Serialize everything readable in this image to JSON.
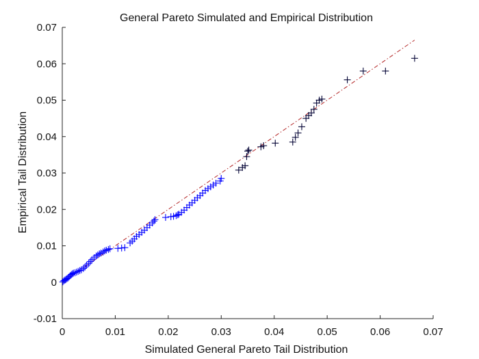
{
  "chart_data": {
    "type": "scatter",
    "title": "General Pareto Simulated and Empirical Distribution",
    "xlabel": "Simulated General Pareto Tail Distribution",
    "ylabel": "Empirical Tail Distribution",
    "xlim": [
      0,
      0.07
    ],
    "ylim": [
      -0.01,
      0.07
    ],
    "xticks": [
      "0",
      "0.01",
      "0.02",
      "0.03",
      "0.04",
      "0.05",
      "0.06",
      "0.07"
    ],
    "yticks": [
      "-0.01",
      "0",
      "0.01",
      "0.02",
      "0.03",
      "0.04",
      "0.05",
      "0.06",
      "0.07"
    ],
    "grid": false,
    "marker_color": "#0000ff",
    "highlight_marker_color": "#000033",
    "reference_line_color": "#b22222",
    "reference_line": {
      "x": [
        0,
        0.0665
      ],
      "y": [
        0,
        0.0665
      ]
    },
    "series": [
      {
        "marker": "plus",
        "x": [
          0.0001,
          0.0003,
          0.0005,
          0.0007,
          0.0009,
          0.0011,
          0.0013,
          0.0015,
          0.0017,
          0.0019,
          0.0021,
          0.0024,
          0.0027,
          0.003,
          0.0033,
          0.0036,
          0.004,
          0.0043,
          0.0046,
          0.005,
          0.0053,
          0.0056,
          0.006,
          0.0064,
          0.0067,
          0.007,
          0.0073,
          0.0077,
          0.008,
          0.0083,
          0.0087,
          0.009,
          0.0105,
          0.0112,
          0.0118,
          0.0128,
          0.0132,
          0.0136,
          0.014,
          0.0145,
          0.015,
          0.0155,
          0.016,
          0.0165,
          0.017,
          0.0173,
          0.0175,
          0.0195,
          0.0205,
          0.021,
          0.0215,
          0.0218,
          0.022,
          0.0225,
          0.023,
          0.0235,
          0.024,
          0.0245,
          0.025,
          0.0255,
          0.026,
          0.0265,
          0.027,
          0.0275,
          0.028,
          0.0285,
          0.029,
          0.0298,
          0.03,
          0.0333,
          0.034,
          0.0345,
          0.0348,
          0.035,
          0.0352,
          0.0375,
          0.038,
          0.0402,
          0.0435,
          0.044,
          0.0445,
          0.0452,
          0.046,
          0.0465,
          0.047,
          0.0475,
          0.048,
          0.0485,
          0.049,
          0.0538,
          0.0568,
          0.061,
          0.0665
        ],
        "y": [
          0.0001,
          0.0004,
          0.0006,
          0.0008,
          0.001,
          0.0012,
          0.0015,
          0.0018,
          0.0021,
          0.0023,
          0.0025,
          0.0026,
          0.0028,
          0.003,
          0.0032,
          0.0034,
          0.0038,
          0.0042,
          0.0047,
          0.0052,
          0.0057,
          0.0062,
          0.0067,
          0.0072,
          0.0075,
          0.0078,
          0.008,
          0.0083,
          0.0086,
          0.0088,
          0.009,
          0.0092,
          0.0093,
          0.0094,
          0.0095,
          0.0108,
          0.0113,
          0.0119,
          0.0126,
          0.0131,
          0.0137,
          0.0143,
          0.015,
          0.0157,
          0.0163,
          0.0168,
          0.0172,
          0.0178,
          0.018,
          0.0181,
          0.0183,
          0.0185,
          0.0187,
          0.0192,
          0.0198,
          0.0205,
          0.0212,
          0.0218,
          0.0225,
          0.0232,
          0.0238,
          0.0245,
          0.0252,
          0.0257,
          0.0262,
          0.0267,
          0.0272,
          0.0278,
          0.0285,
          0.0308,
          0.0315,
          0.032,
          0.0345,
          0.036,
          0.0363,
          0.0372,
          0.0375,
          0.0382,
          0.0385,
          0.0398,
          0.041,
          0.0427,
          0.045,
          0.0458,
          0.0465,
          0.0475,
          0.0492,
          0.05,
          0.0503,
          0.0556,
          0.058,
          0.058,
          0.0615
        ]
      }
    ]
  }
}
